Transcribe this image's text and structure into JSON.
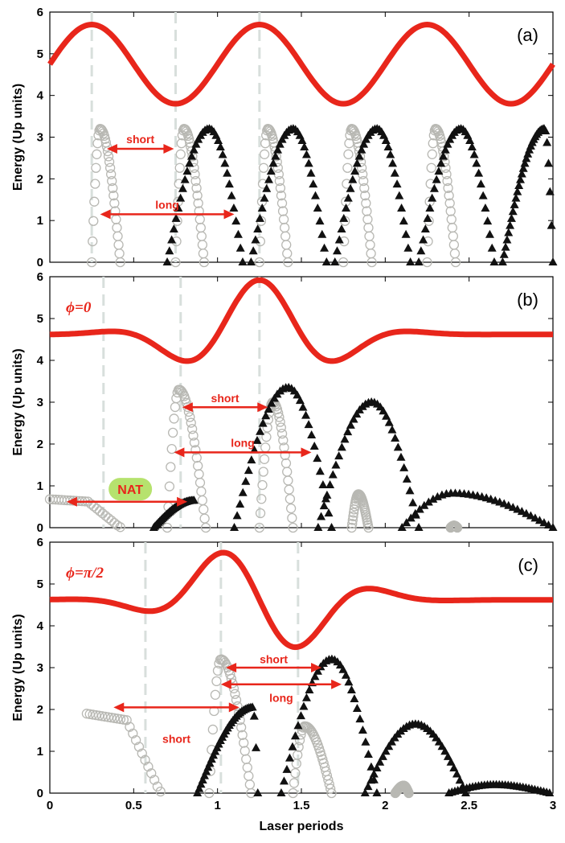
{
  "figure": {
    "xlabel": "Laser periods",
    "ylabel": "Energy (Up units)",
    "x_ticks": [
      "0",
      "0.5",
      "1",
      "1.5",
      "2",
      "2.5",
      "3"
    ],
    "y_ticks": [
      "0",
      "1",
      "2",
      "3",
      "4",
      "5",
      "6"
    ],
    "colors": {
      "field": "#e8261b",
      "arrow": "#e8261b",
      "short_circle": "#b8b8b3",
      "long_triangle": "#111111",
      "guide": "#d8dfdc",
      "nat_bg": "#b6e26e"
    }
  },
  "chart_data": [
    {
      "type": "scatter",
      "panel_label": "(a)",
      "phase_label": "",
      "xlim": [
        0,
        3
      ],
      "ylim": [
        0,
        6
      ],
      "field": {
        "kind": "cos",
        "mean": 4.75,
        "amp": 0.95,
        "period": 1.0,
        "peak_x": 0.25
      },
      "guide_lines_x": [
        0.25,
        0.75,
        1.25
      ],
      "short_groups": [
        {
          "x0": 0.25,
          "peak_x": 0.3,
          "x1": 0.42,
          "peak_y": 3.2
        },
        {
          "x0": 0.75,
          "peak_x": 0.8,
          "x1": 0.92,
          "peak_y": 3.2
        },
        {
          "x0": 1.25,
          "peak_x": 1.3,
          "x1": 1.42,
          "peak_y": 3.2
        },
        {
          "x0": 1.75,
          "peak_x": 1.8,
          "x1": 1.92,
          "peak_y": 3.2
        },
        {
          "x0": 2.25,
          "peak_x": 2.3,
          "x1": 2.42,
          "peak_y": 3.2
        }
      ],
      "long_groups": [
        {
          "x0": 0.7,
          "peak_x": 0.95,
          "x1": 1.15,
          "peak_y": 3.2
        },
        {
          "x0": 1.2,
          "peak_x": 1.45,
          "x1": 1.65,
          "peak_y": 3.2
        },
        {
          "x0": 1.7,
          "peak_x": 1.95,
          "x1": 2.15,
          "peak_y": 3.2
        },
        {
          "x0": 2.2,
          "peak_x": 2.45,
          "x1": 2.65,
          "peak_y": 3.2
        },
        {
          "x0": 2.7,
          "peak_x": 2.95,
          "x1": 3.0,
          "peak_y": 3.2
        }
      ],
      "arrows": [
        {
          "label": "short",
          "x1": 0.34,
          "x2": 0.74,
          "y": 2.72,
          "label_y": 2.95
        },
        {
          "label": "long",
          "x1": 0.3,
          "x2": 1.1,
          "y": 1.15,
          "label_y": 1.38
        }
      ],
      "nat": null
    },
    {
      "type": "scatter",
      "panel_label": "(b)",
      "phase_label": "ϕ=0",
      "xlim": [
        0,
        3
      ],
      "ylim": [
        0,
        6
      ],
      "field": {
        "kind": "pulse",
        "mean": 4.62,
        "amp": 1.3,
        "period": 1.0,
        "peak_x": 1.25,
        "center": 1.25,
        "sigma": 0.55
      },
      "guide_lines_x": [
        0.32,
        0.78,
        1.25
      ],
      "short_groups": [
        {
          "x0": 0.7,
          "peak_x": 0.77,
          "x1": 0.93,
          "peak_y": 3.3
        },
        {
          "x0": 1.25,
          "peak_x": 1.33,
          "x1": 1.45,
          "peak_y": 3.0
        },
        {
          "x0": 1.8,
          "peak_x": 1.84,
          "x1": 1.9,
          "peak_y": 0.8
        },
        {
          "x0": 2.39,
          "peak_x": 2.41,
          "x1": 2.43,
          "peak_y": 0.05
        }
      ],
      "long_groups": [
        {
          "x0": 0.62,
          "peak_x": 0.86,
          "x1": 0.86,
          "peak_y": 0.65
        },
        {
          "x0": 1.1,
          "peak_x": 1.42,
          "x1": 1.68,
          "peak_y": 3.35
        },
        {
          "x0": 1.6,
          "peak_x": 1.92,
          "x1": 2.2,
          "peak_y": 3.0
        },
        {
          "x0": 2.1,
          "peak_x": 2.4,
          "x1": 3.0,
          "peak_y": 0.82
        }
      ],
      "nat_points": {
        "x0": 0.0,
        "x1": 0.42,
        "y0": 0.68
      },
      "arrows": [
        {
          "label": "short",
          "x1": 0.79,
          "x2": 1.3,
          "y": 2.88,
          "label_y": 3.1
        },
        {
          "label": "long",
          "x1": 0.74,
          "x2": 1.56,
          "y": 1.8,
          "label_y": 2.03
        },
        {
          "label": "",
          "x1": 0.1,
          "x2": 0.82,
          "y": 0.62,
          "label_y": 0
        }
      ],
      "nat": {
        "text": "NAT",
        "x": 0.48,
        "y": 0.92
      }
    },
    {
      "type": "scatter",
      "panel_label": "(c)",
      "phase_label": "ϕ=π/2",
      "xlim": [
        0,
        3
      ],
      "ylim": [
        0,
        6
      ],
      "field": {
        "kind": "pulse_sin",
        "mean": 4.62,
        "amp": 1.35,
        "period": 1.0,
        "peak_x": 1.0,
        "center": 1.25,
        "sigma": 0.55
      },
      "guide_lines_x": [
        0.57,
        1.02,
        1.48
      ],
      "short_groups": [
        {
          "x0": 0.95,
          "peak_x": 1.02,
          "x1": 1.2,
          "peak_y": 3.2
        },
        {
          "x0": 1.45,
          "peak_x": 1.52,
          "x1": 1.68,
          "peak_y": 1.6
        },
        {
          "x0": 2.06,
          "peak_x": 2.11,
          "x1": 2.14,
          "peak_y": 0.18
        }
      ],
      "long_groups": [
        {
          "x0": 0.88,
          "peak_x": 1.21,
          "x1": 1.24,
          "peak_y": 2.05
        },
        {
          "x0": 1.38,
          "peak_x": 1.68,
          "x1": 1.95,
          "peak_y": 3.2
        },
        {
          "x0": 1.88,
          "peak_x": 2.18,
          "x1": 2.48,
          "peak_y": 1.65
        },
        {
          "x0": 2.38,
          "peak_x": 2.65,
          "x1": 2.98,
          "peak_y": 0.2
        }
      ],
      "nat_points": {
        "x0": 0.22,
        "x1": 0.66,
        "y0": 1.9
      },
      "arrows": [
        {
          "label": "short",
          "x1": 1.05,
          "x2": 1.62,
          "y": 3.0,
          "label_y": 3.2
        },
        {
          "label": "long",
          "x1": 1.02,
          "x2": 1.74,
          "y": 2.6,
          "label_y": 2.28
        },
        {
          "label": "short",
          "x1": 0.38,
          "x2": 1.13,
          "y": 2.05,
          "label_y": 1.3
        }
      ],
      "nat": null
    }
  ]
}
